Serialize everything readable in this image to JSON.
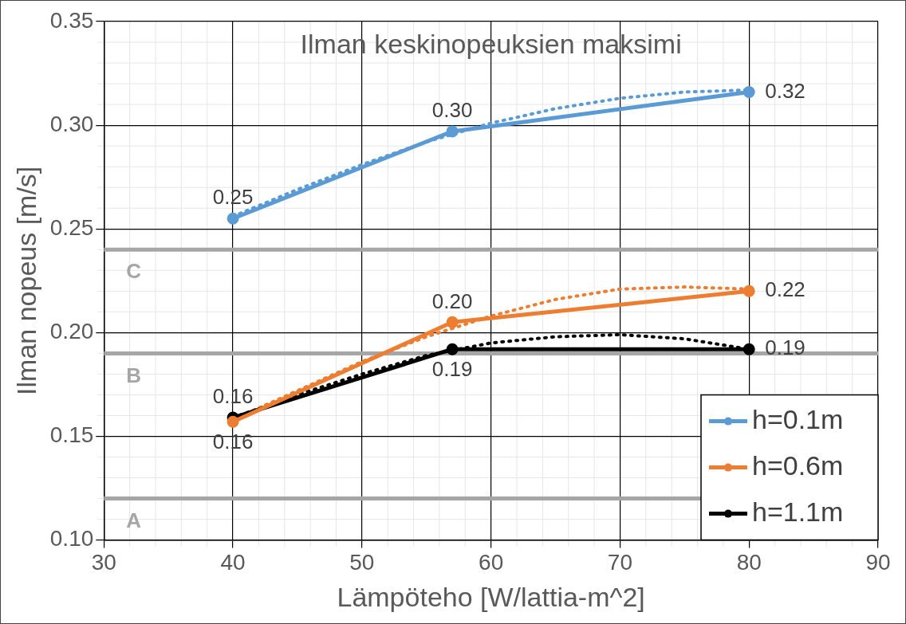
{
  "chart_data": {
    "type": "line",
    "title": "Ilman keskinopeuksien maksimi",
    "xlabel": "Lämpöteho [W/lattia-m^2]",
    "ylabel": "Ilman nopeus [m/s]",
    "x": [
      40,
      57,
      80
    ],
    "series": [
      {
        "name": "h=0.1m",
        "color": "#5b9bd5",
        "values": [
          0.255,
          0.297,
          0.316
        ],
        "value_labels": [
          "0.25",
          "0.30",
          "0.32"
        ]
      },
      {
        "name": "h=0.6m",
        "color": "#ed7d31",
        "values": [
          0.157,
          0.205,
          0.22
        ],
        "value_labels": [
          "0.16",
          "0.20",
          "0.22"
        ]
      },
      {
        "name": "h=1.1m",
        "color": "#000000",
        "values": [
          0.159,
          0.192,
          0.192
        ],
        "value_labels": [
          "0.16",
          "0.19",
          "0.19"
        ]
      },
      {
        "type": "line",
        "line_style": "dotted",
        "marker": "none",
        "color": "#5b9bd5",
        "x": [
          40,
          45,
          50,
          55,
          60,
          65,
          70,
          75,
          80
        ],
        "values": [
          0.256,
          0.269,
          0.281,
          0.292,
          0.301,
          0.308,
          0.313,
          0.316,
          0.317
        ]
      },
      {
        "type": "line",
        "line_style": "dotted",
        "marker": "none",
        "color": "#ed7d31",
        "x": [
          40,
          45,
          50,
          55,
          60,
          65,
          70,
          75,
          80
        ],
        "values": [
          0.158,
          0.172,
          0.186,
          0.198,
          0.208,
          0.216,
          0.221,
          0.222,
          0.221
        ]
      },
      {
        "type": "line",
        "line_style": "dotted",
        "marker": "none",
        "color": "#000000",
        "x": [
          40,
          45,
          50,
          55,
          60,
          65,
          70,
          75,
          80
        ],
        "values": [
          0.159,
          0.17,
          0.18,
          0.189,
          0.195,
          0.198,
          0.199,
          0.197,
          0.192
        ]
      }
    ],
    "xlim": [
      30,
      90
    ],
    "xticks": [
      30,
      40,
      50,
      60,
      70,
      80,
      90
    ],
    "ylim": [
      0.1,
      0.35
    ],
    "yticks": [
      {
        "value": 0.1,
        "label": "0.10"
      },
      {
        "value": 0.15,
        "label": "0.15"
      },
      {
        "value": 0.2,
        "label": "0.20"
      },
      {
        "value": 0.25,
        "label": "0.25"
      },
      {
        "value": 0.3,
        "label": "0.30"
      },
      {
        "value": 0.35,
        "label": "0.35"
      }
    ],
    "ref_lines": [
      {
        "axis": "y",
        "value": 0.24,
        "label": "C",
        "color": "#a6a6a6"
      },
      {
        "axis": "y",
        "value": 0.19,
        "label": "B",
        "color": "#a6a6a6"
      },
      {
        "axis": "y",
        "value": 0.12,
        "label": "A",
        "color": "#a6a6a6"
      }
    ],
    "grid": true,
    "legend": "bottom right",
    "marker": "circle",
    "line_style": "solid"
  }
}
